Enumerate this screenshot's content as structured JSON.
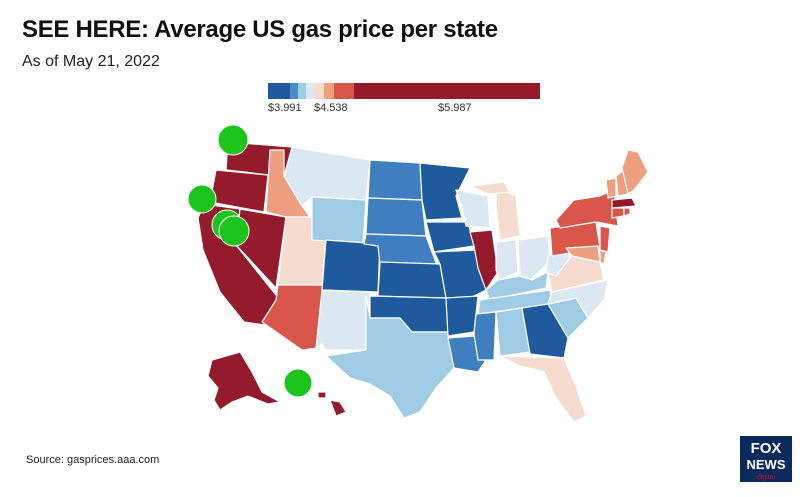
{
  "title": "SEE HERE: Average US gas price per state",
  "subtitle": "As of May 21, 2022",
  "legend": {
    "colors": [
      "#1f5a9c",
      "#4a8cc8",
      "#9fcbe4",
      "#dbe8f2",
      "#f6dccf",
      "#ee9f80",
      "#d9574a",
      "#941b2b"
    ],
    "widths": [
      22,
      8,
      8,
      8,
      10,
      10,
      20,
      186
    ],
    "label_low": "$3.991",
    "label_mid": "$4.538",
    "label_high": "$5.987"
  },
  "map": {
    "colors": {
      "dark_blue": "#1f5a9c",
      "mid_blue": "#3f7fbf",
      "light_blue": "#9fcbe4",
      "pale_blue": "#dbe8f2",
      "pale_orange": "#f6dccf",
      "orange": "#ee9f80",
      "red": "#d9574a",
      "dark_red": "#941b2b",
      "marker": "#1ec41e"
    }
  },
  "source": "Source: gasprices.aaa.com",
  "logo": {
    "line1": "FOX",
    "line2": "NEWS",
    "line3": "digital"
  }
}
